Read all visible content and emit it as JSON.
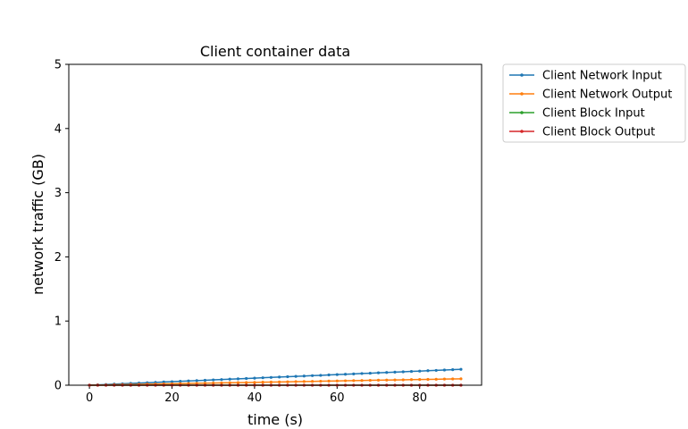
{
  "chart_data": {
    "type": "line",
    "title": "Client container data",
    "xlabel": "time (s)",
    "ylabel": "network traffic (GB)",
    "xlim": [
      -5,
      95
    ],
    "ylim": [
      0,
      5
    ],
    "x_ticks": [
      0,
      20,
      40,
      60,
      80
    ],
    "y_ticks": [
      0,
      1,
      2,
      3,
      4,
      5
    ],
    "grid": false,
    "legend_position": "outside-top-right",
    "x": [
      0,
      2,
      4,
      6,
      8,
      10,
      12,
      14,
      16,
      18,
      20,
      22,
      24,
      26,
      28,
      30,
      32,
      34,
      36,
      38,
      40,
      42,
      44,
      46,
      48,
      50,
      52,
      54,
      56,
      58,
      60,
      62,
      64,
      66,
      68,
      70,
      72,
      74,
      76,
      78,
      80,
      82,
      84,
      86,
      88,
      90
    ],
    "series": [
      {
        "name": "Client Network Input",
        "color": "#1f77b4",
        "values": [
          0.0,
          0.006,
          0.011,
          0.017,
          0.022,
          0.028,
          0.033,
          0.039,
          0.044,
          0.05,
          0.055,
          0.061,
          0.066,
          0.072,
          0.077,
          0.083,
          0.088,
          0.094,
          0.099,
          0.105,
          0.11,
          0.116,
          0.121,
          0.127,
          0.132,
          0.138,
          0.143,
          0.149,
          0.154,
          0.16,
          0.165,
          0.171,
          0.176,
          0.182,
          0.187,
          0.193,
          0.198,
          0.204,
          0.209,
          0.215,
          0.22,
          0.226,
          0.231,
          0.237,
          0.242,
          0.248
        ]
      },
      {
        "name": "Client Network Output",
        "color": "#ff7f0e",
        "values": [
          0.0,
          0.002,
          0.004,
          0.007,
          0.009,
          0.011,
          0.013,
          0.016,
          0.018,
          0.02,
          0.022,
          0.024,
          0.027,
          0.029,
          0.031,
          0.033,
          0.036,
          0.038,
          0.04,
          0.042,
          0.044,
          0.047,
          0.049,
          0.051,
          0.053,
          0.056,
          0.058,
          0.06,
          0.062,
          0.064,
          0.067,
          0.069,
          0.071,
          0.073,
          0.076,
          0.078,
          0.08,
          0.082,
          0.084,
          0.087,
          0.089,
          0.091,
          0.093,
          0.096,
          0.098,
          0.1
        ]
      },
      {
        "name": "Client Block Input",
        "color": "#2ca02c",
        "values": [
          0,
          0,
          0,
          0,
          0,
          0,
          0,
          0,
          0,
          0,
          0,
          0,
          0,
          0,
          0,
          0,
          0,
          0,
          0,
          0,
          0,
          0,
          0,
          0,
          0,
          0,
          0,
          0,
          0,
          0,
          0,
          0,
          0,
          0,
          0,
          0,
          0,
          0,
          0,
          0,
          0,
          0,
          0,
          0,
          0,
          0
        ]
      },
      {
        "name": "Client Block Output",
        "color": "#d62728",
        "values": [
          0,
          0,
          0,
          0,
          0,
          0,
          0,
          0,
          0,
          0,
          0,
          0,
          0,
          0,
          0,
          0,
          0,
          0,
          0,
          0,
          0,
          0,
          0,
          0,
          0,
          0,
          0,
          0,
          0,
          0,
          0,
          0,
          0,
          0,
          0,
          0,
          0,
          0,
          0,
          0,
          0,
          0,
          0,
          0,
          0,
          0
        ]
      }
    ]
  }
}
